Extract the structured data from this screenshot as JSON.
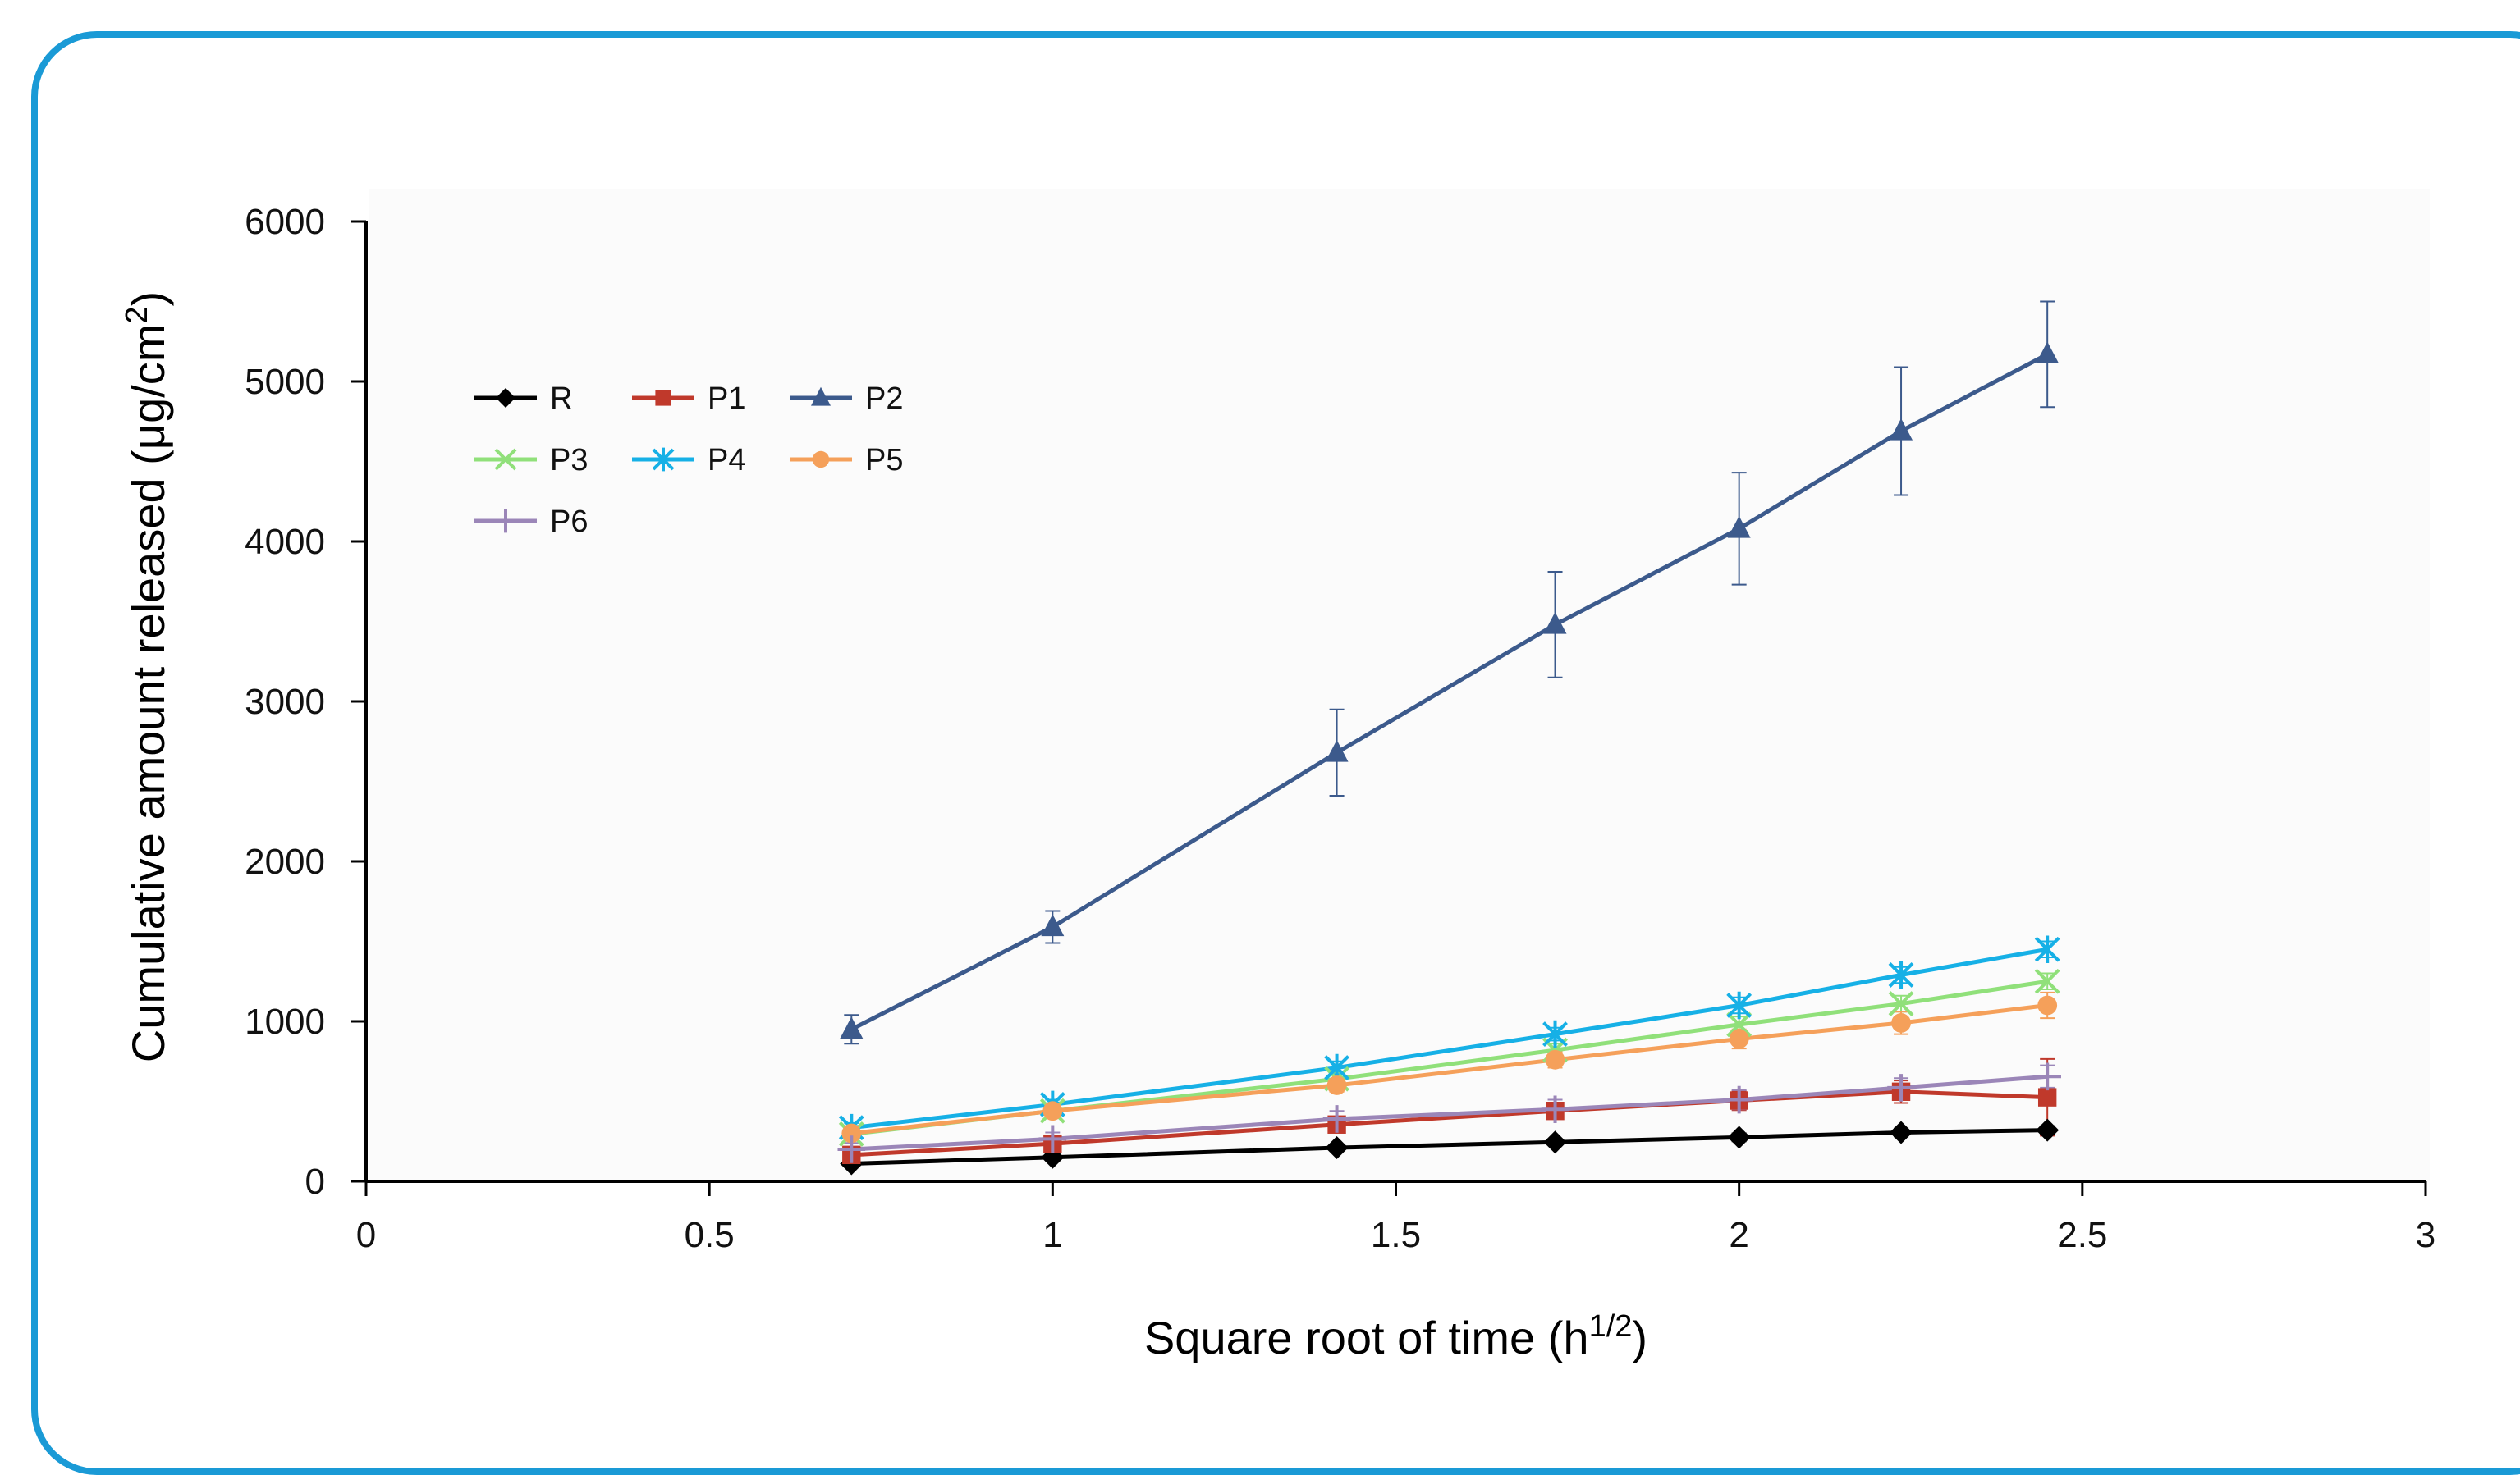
{
  "chart_data": {
    "type": "line",
    "title": "",
    "xlabel": "Square root of time (h",
    "xlabel_sup": "1/2",
    "xlabel_close": ")",
    "ylabel": "Cumulative amount released (μg/cm",
    "ylabel_sup": "2",
    "ylabel_close": ")",
    "xlim": [
      0,
      3
    ],
    "ylim": [
      0,
      6000
    ],
    "xticks": [
      "0",
      "0.5",
      "1",
      "1.5",
      "2",
      "2.5",
      "3"
    ],
    "yticks": [
      "0",
      "1000",
      "2000",
      "3000",
      "4000",
      "5000",
      "6000"
    ],
    "grid": false,
    "legend_position": "top-left",
    "x": [
      0.707,
      1,
      1.414,
      1.732,
      2,
      2.236,
      2.449
    ],
    "series": [
      {
        "name": "R",
        "color": "#000000",
        "marker": "diamond",
        "values": [
          110,
          150,
          210,
          245,
          275,
          305,
          320
        ],
        "errors": [
          20,
          20,
          20,
          20,
          25,
          25,
          25
        ]
      },
      {
        "name": "P1",
        "color": "#c0392b",
        "marker": "square",
        "values": [
          165,
          235,
          355,
          440,
          505,
          560,
          525
        ],
        "errors": [
          30,
          30,
          40,
          50,
          60,
          70,
          240
        ]
      },
      {
        "name": "P2",
        "color": "#3c5a8c",
        "marker": "triangle",
        "values": [
          950,
          1590,
          2680,
          3480,
          4080,
          4690,
          5170
        ],
        "errors": [
          90,
          100,
          270,
          330,
          350,
          400,
          330
        ]
      },
      {
        "name": "P3",
        "color": "#90e07a",
        "marker": "x",
        "values": [
          295,
          440,
          640,
          820,
          980,
          1110,
          1250
        ],
        "errors": [
          30,
          30,
          40,
          40,
          50,
          50,
          50
        ]
      },
      {
        "name": "P4",
        "color": "#16b0e6",
        "marker": "asterisk",
        "values": [
          335,
          480,
          710,
          920,
          1100,
          1290,
          1450
        ],
        "errors": [
          30,
          30,
          40,
          40,
          50,
          50,
          50
        ]
      },
      {
        "name": "P5",
        "color": "#f5a05a",
        "marker": "circle",
        "values": [
          300,
          440,
          600,
          760,
          890,
          990,
          1100
        ],
        "errors": [
          30,
          30,
          40,
          50,
          60,
          70,
          80
        ]
      },
      {
        "name": "P6",
        "color": "#9b86b8",
        "marker": "plus",
        "values": [
          200,
          265,
          390,
          450,
          510,
          585,
          655
        ],
        "errors": [
          40,
          40,
          50,
          60,
          60,
          60,
          70
        ]
      }
    ]
  }
}
